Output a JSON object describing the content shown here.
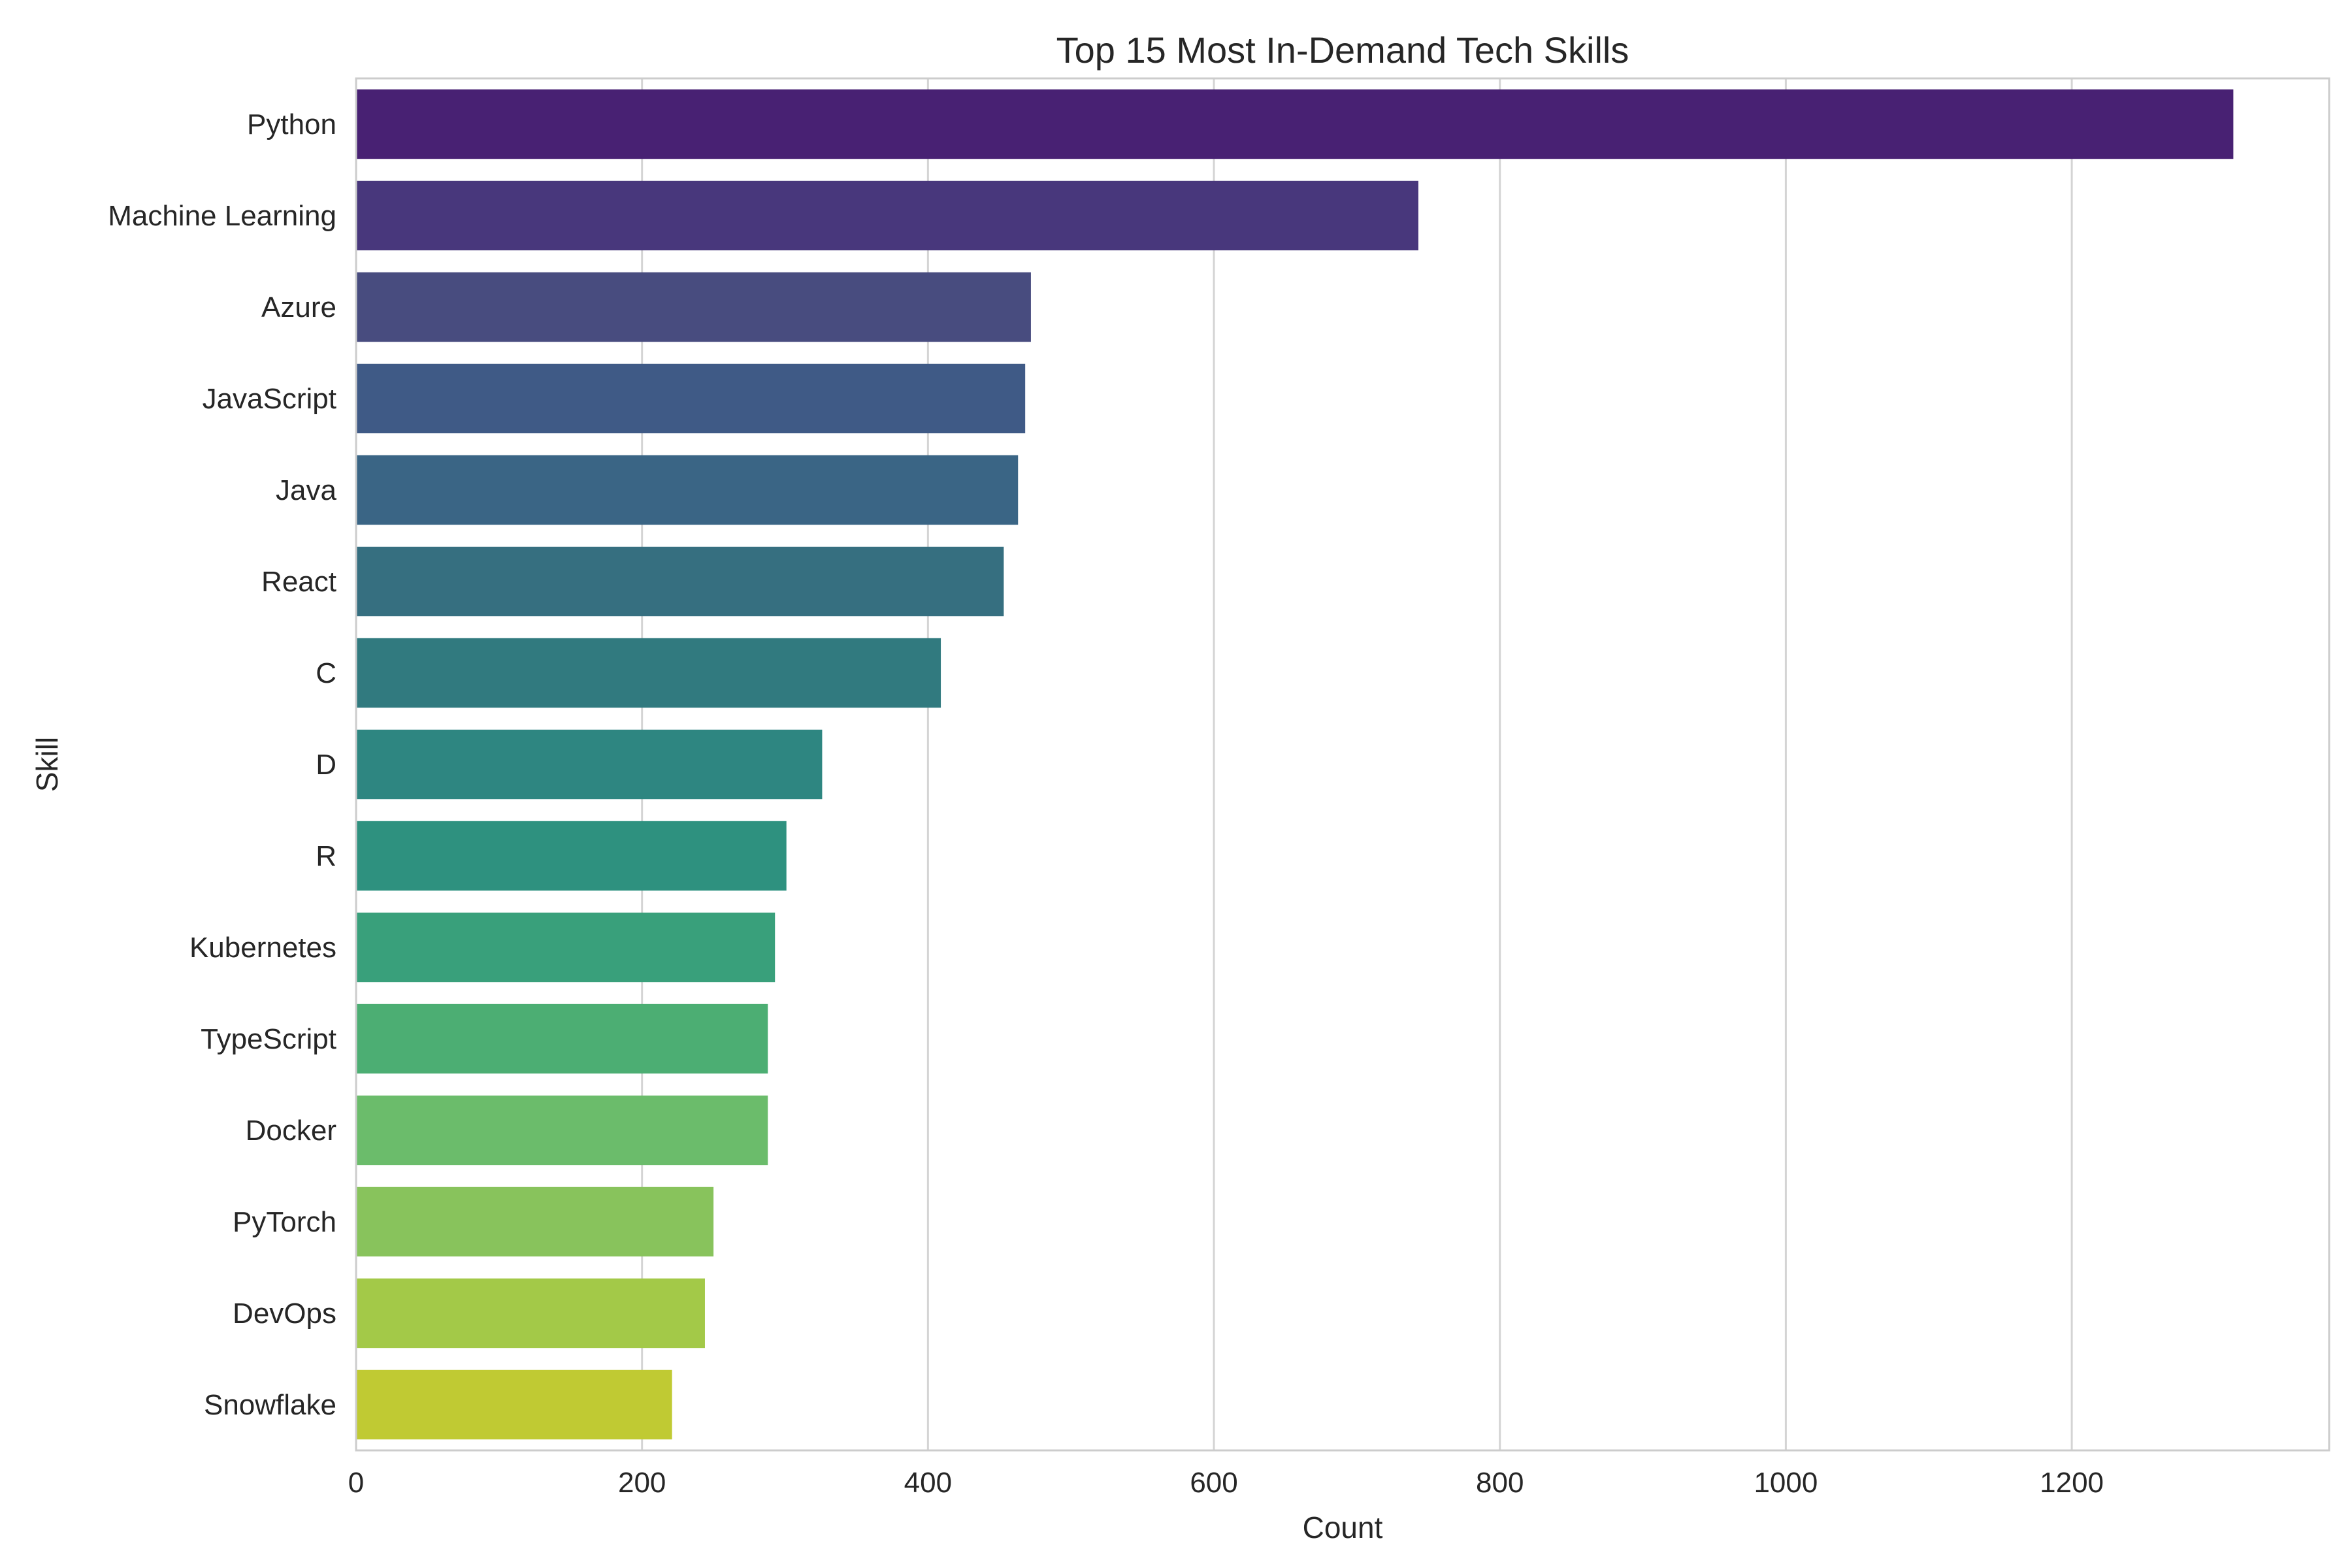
{
  "chart_data": {
    "type": "bar",
    "orientation": "horizontal",
    "title": "Top 15 Most In-Demand Tech Skills",
    "xlabel": "Count",
    "ylabel": "Skill",
    "xlim": [
      0,
      1380
    ],
    "xticks": [
      0,
      200,
      400,
      600,
      800,
      1000,
      1200
    ],
    "grid": "vertical",
    "categories": [
      "Python",
      "Machine Learning",
      "Azure",
      "JavaScript",
      "Java",
      "React",
      "C",
      "D",
      "R",
      "Kubernetes",
      "TypeScript",
      "Docker",
      "PyTorch",
      "DevOps",
      "Snowflake"
    ],
    "values": [
      1313,
      743,
      472,
      468,
      463,
      453,
      409,
      326,
      301,
      293,
      288,
      288,
      250,
      244,
      221
    ],
    "colors": [
      "#482173",
      "#48377c",
      "#484c7f",
      "#3f5a86",
      "#3a6585",
      "#366f80",
      "#317a7f",
      "#2e8681",
      "#2e917f",
      "#39a07b",
      "#4cae73",
      "#6bbc6b",
      "#88c35c",
      "#a3c948",
      "#c0ca33"
    ]
  }
}
